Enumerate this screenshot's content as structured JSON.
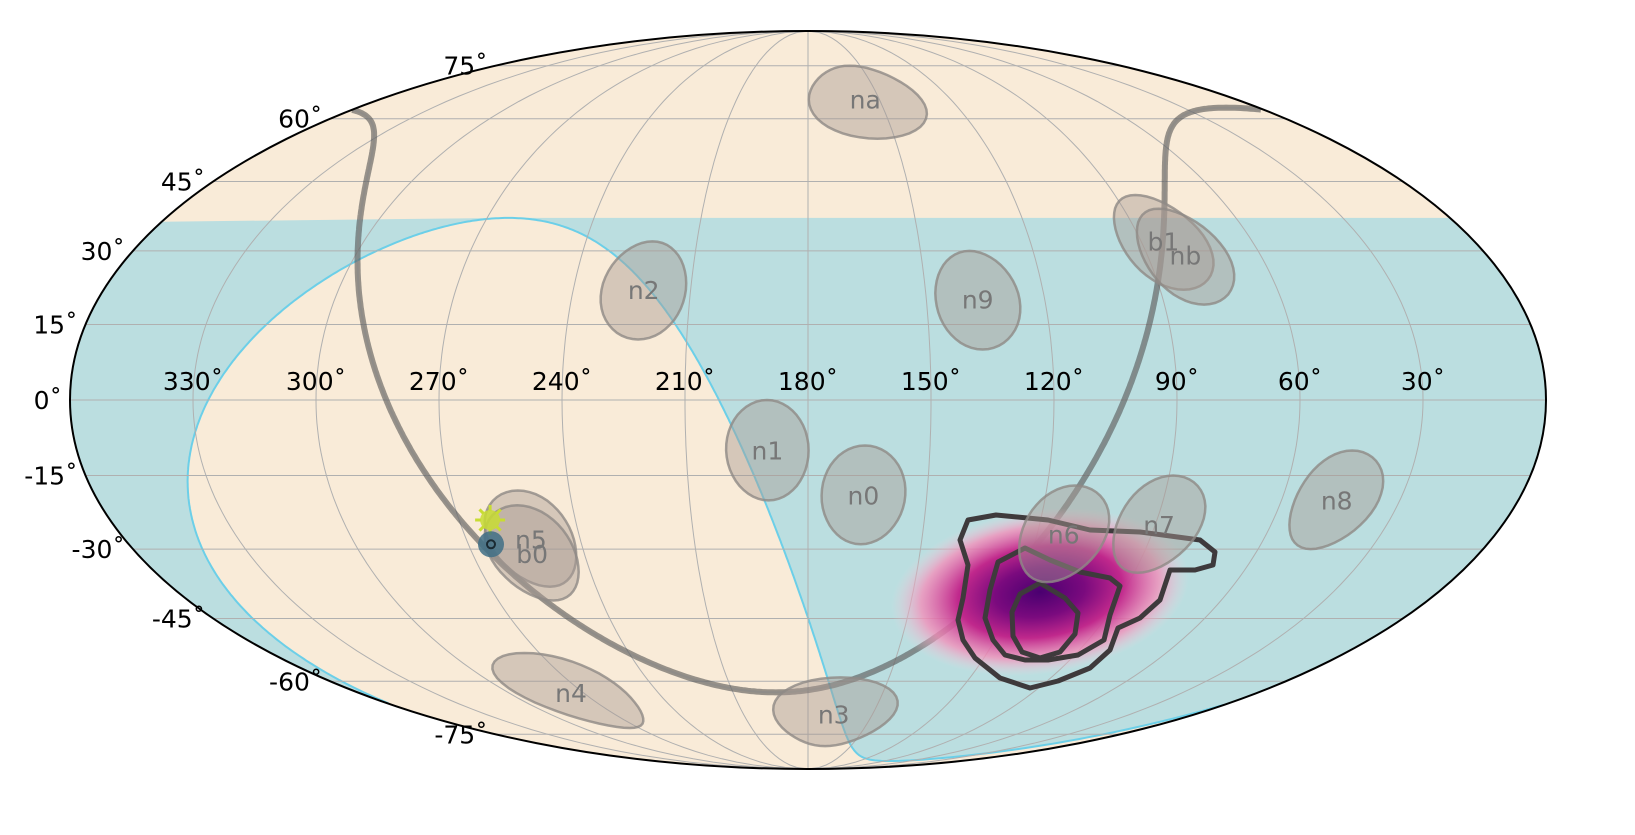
{
  "chart_data": {
    "type": "scatter",
    "projection": "mollweide",
    "title": "",
    "colors": {
      "sky": "#f9ebd8",
      "earth_occultation": "#bbdee0",
      "earth_limb": "#6ccfe8",
      "galactic_plane": "#555555",
      "sun": "#c8dc32",
      "detector": "#a89c94",
      "probability": "#7a0a7e"
    },
    "grid": true,
    "lon_ticks": [
      "330˚",
      "300˚",
      "270˚",
      "240˚",
      "210˚",
      "180˚",
      "150˚",
      "120˚",
      "90˚",
      "60˚",
      "30˚"
    ],
    "lat_ticks": [
      "75˚",
      "60˚",
      "45˚",
      "30˚",
      "15˚",
      "0˚",
      "-15˚",
      "-30˚",
      "-45˚",
      "-60˚",
      "-75˚"
    ],
    "detectors": [
      {
        "name": "na",
        "ra": 156,
        "dec": 65
      },
      {
        "name": "b1",
        "ra": 84,
        "dec": 32
      },
      {
        "name": "nb",
        "ra": 80,
        "dec": 29
      },
      {
        "name": "n2",
        "ra": 222,
        "dec": 22
      },
      {
        "name": "n9",
        "ra": 137,
        "dec": 20
      },
      {
        "name": "n1",
        "ra": 190,
        "dec": -10
      },
      {
        "name": "n0",
        "ra": 166,
        "dec": -19
      },
      {
        "name": "n6",
        "ra": 113,
        "dec": -27
      },
      {
        "name": "n7",
        "ra": 89,
        "dec": -25
      },
      {
        "name": "n8",
        "ra": 46,
        "dec": -20
      },
      {
        "name": "n5",
        "ra": 253,
        "dec": -28
      },
      {
        "name": "b0",
        "ra": 254,
        "dec": -31
      },
      {
        "name": "n4",
        "ra": 275,
        "dec": -63
      },
      {
        "name": "n3",
        "ra": 168,
        "dec": -69
      }
    ],
    "sun": {
      "ra": 262,
      "dec": -24
    },
    "earth_center": {
      "ra": 264,
      "dec": -29
    },
    "localization_peak": {
      "ra": 117,
      "dec": -41
    }
  }
}
